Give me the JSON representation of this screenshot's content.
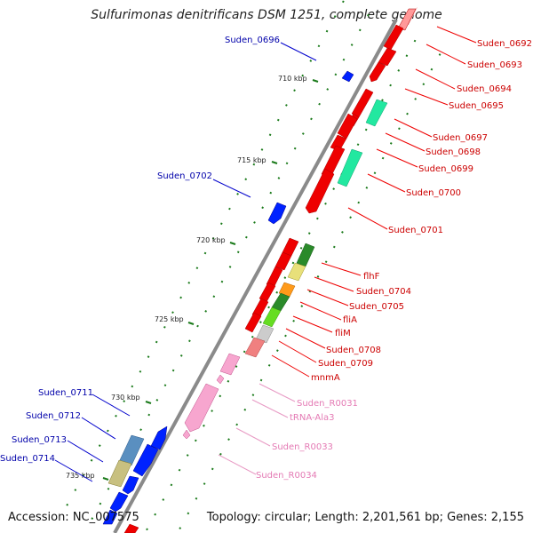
{
  "title": "Sulfurimonas denitrificans DSM 1251, complete genome",
  "accession": "Accession: NC_007575",
  "topology": "Topology: circular; Length: 2,201,561 bp; Genes: 2,155",
  "colors": {
    "forward_label": "#cc0000",
    "reverse_label": "#0000aa",
    "rna_label": "#e47ab4",
    "axis": "#888888",
    "tick": "#1a7a1a"
  },
  "scale_labels": [
    "710 kbp",
    "715 kbp",
    "720 kbp",
    "725 kbp",
    "730 kbp",
    "735 kbp"
  ],
  "right_labels": [
    {
      "text": "Suden_0692",
      "kind": "forward"
    },
    {
      "text": "Suden_0693",
      "kind": "forward"
    },
    {
      "text": "Suden_0694",
      "kind": "forward"
    },
    {
      "text": "Suden_0695",
      "kind": "forward"
    },
    {
      "text": "Suden_0697",
      "kind": "forward"
    },
    {
      "text": "Suden_0698",
      "kind": "forward"
    },
    {
      "text": "Suden_0699",
      "kind": "forward"
    },
    {
      "text": "Suden_0700",
      "kind": "forward"
    },
    {
      "text": "Suden_0701",
      "kind": "forward"
    },
    {
      "text": "flhF",
      "kind": "forward"
    },
    {
      "text": "Suden_0704",
      "kind": "forward"
    },
    {
      "text": "Suden_0705",
      "kind": "forward"
    },
    {
      "text": "fliA",
      "kind": "forward"
    },
    {
      "text": "fliM",
      "kind": "forward"
    },
    {
      "text": "Suden_0708",
      "kind": "forward"
    },
    {
      "text": "Suden_0709",
      "kind": "forward"
    },
    {
      "text": "mnmA",
      "kind": "forward"
    },
    {
      "text": "Suden_R0031",
      "kind": "rna"
    },
    {
      "text": "tRNA-Ala3",
      "kind": "rna"
    },
    {
      "text": "Suden_R0033",
      "kind": "rna"
    },
    {
      "text": "Suden_R0034",
      "kind": "rna"
    }
  ],
  "left_labels": [
    {
      "text": "Suden_0696"
    },
    {
      "text": "Suden_0702"
    },
    {
      "text": "Suden_0711"
    },
    {
      "text": "Suden_0712"
    },
    {
      "text": "Suden_0713"
    },
    {
      "text": "Suden_0714"
    }
  ]
}
